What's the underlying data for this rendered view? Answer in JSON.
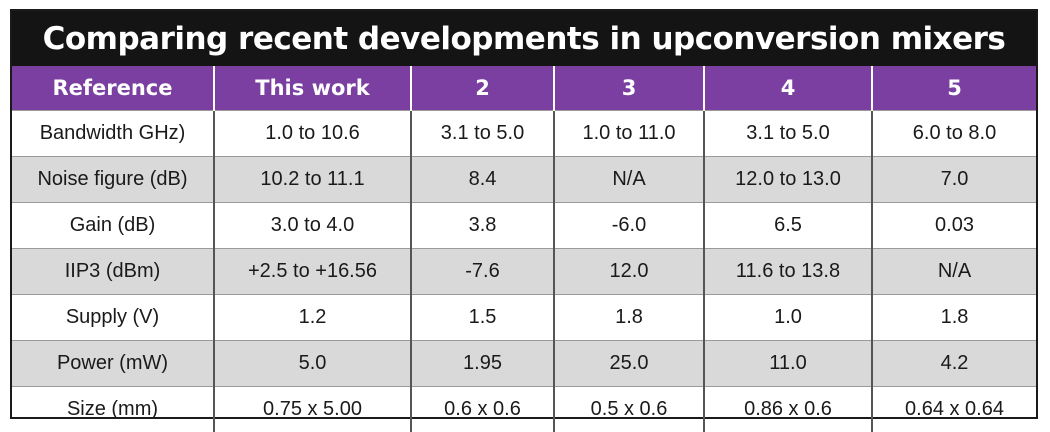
{
  "title": "Comparing recent developments in upconversion mixers",
  "table": {
    "headers": [
      "Reference",
      "This work",
      "2",
      "3",
      "4",
      "5"
    ],
    "rows": [
      [
        "Bandwidth GHz)",
        "1.0 to 10.6",
        "3.1 to 5.0",
        "1.0 to 11.0",
        "3.1 to 5.0",
        "6.0 to 8.0"
      ],
      [
        "Noise figure (dB)",
        "10.2 to 11.1",
        "8.4",
        "N/A",
        "12.0 to 13.0",
        "7.0"
      ],
      [
        "Gain (dB)",
        "3.0 to 4.0",
        "3.8",
        "-6.0",
        "6.5",
        "0.03"
      ],
      [
        "IIP3 (dBm)",
        "+2.5 to +16.56",
        "-7.6",
        "12.0",
        "11.6 to 13.8",
        "N/A"
      ],
      [
        "Supply (V)",
        "1.2",
        "1.5",
        "1.8",
        "1.0",
        "1.8"
      ],
      [
        "Power (mW)",
        "5.0",
        "1.95",
        "25.0",
        "11.0",
        "4.2"
      ],
      [
        "Size (mm)",
        "0.75 x 5.00",
        "0.6 x 0.6",
        "0.5 x 0.6",
        "0.86 x 0.6",
        "0.64 x 0.64"
      ]
    ]
  },
  "colors": {
    "title_bg": "#141414",
    "header_bg": "#7a3fa0",
    "alt_row_bg": "#d9d9d9"
  }
}
